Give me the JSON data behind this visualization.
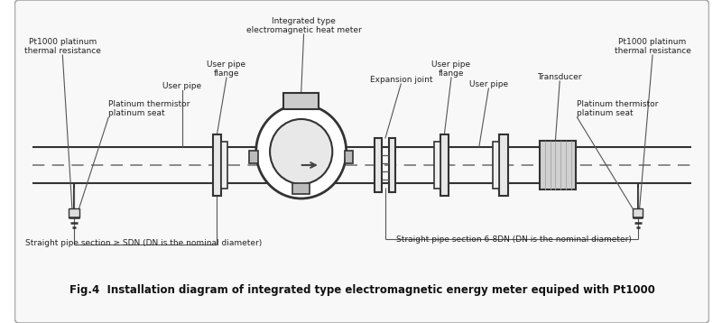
{
  "background_color": "#ffffff",
  "border_color": "#cccccc",
  "title": "Fig.4  Installation diagram of integrated type electromagnetic energy meter equiped with Pt1000",
  "labels": {
    "pt1000_left": "Pt1000 platinum\nthermal resistance",
    "user_pipe_left": "User pipe",
    "user_pipe_flange_left": "User pipe\nflange",
    "em_meter": "Integrated type\nelectromagnetic heat meter",
    "expansion_joint": "Expansion joint",
    "user_pipe_flange_right": "User pipe\nflange",
    "user_pipe_right": "User pipe",
    "transducer": "Transducer",
    "pt1000_right": "Pt1000 platinum\nthermal resistance",
    "thermistor_left": "Platinum thermistor\nplatinum seat",
    "thermistor_right": "Platinum thermistor\nplatinum seat",
    "straight_left": "Straight pipe section ≥ SDN (DN is the nominal diameter)",
    "straight_right": "Straight pipe section 6-8DN (DN is the nominal diameter)"
  }
}
